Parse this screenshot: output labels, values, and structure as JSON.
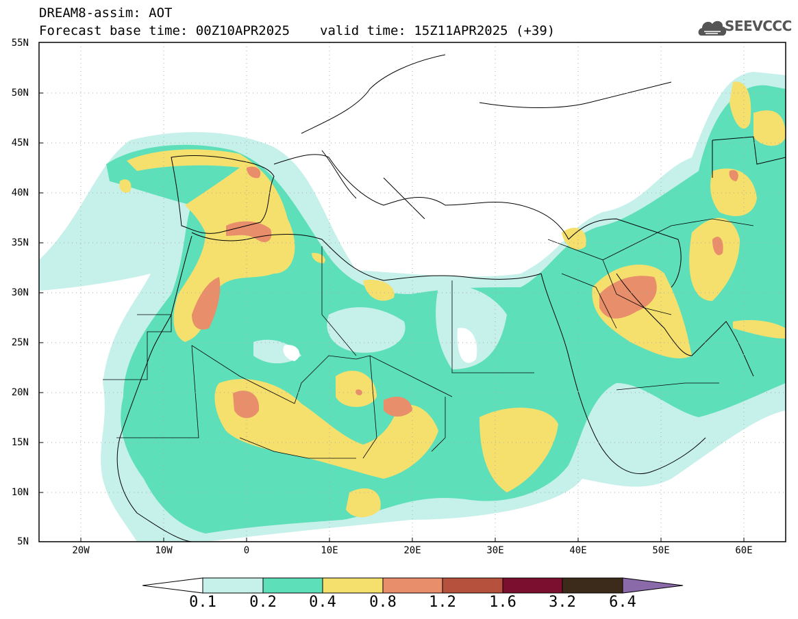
{
  "header": {
    "line1": "DREAM8-assim: AOT",
    "line2_left": "Forecast base time: 00Z10APR2025",
    "line2_right": "valid time: 15Z11APR2025 (+39)",
    "logo_text": "SEEVCCC",
    "logo_icon": "cloud-logo-icon"
  },
  "map": {
    "lat_labels": [
      "55N",
      "50N",
      "45N",
      "40N",
      "35N",
      "30N",
      "25N",
      "20N",
      "15N",
      "10N",
      "5N"
    ],
    "lon_labels": [
      "20W",
      "10W",
      "0",
      "10E",
      "20E",
      "30E",
      "40E",
      "50E",
      "60E"
    ],
    "lat_range": [
      5,
      55
    ],
    "lon_range": [
      -25,
      65
    ],
    "grid": "dotted",
    "variable": "AOT"
  },
  "colorbar": {
    "labels": [
      "0.1",
      "0.2",
      "0.4",
      "0.8",
      "1.2",
      "1.6",
      "3.2",
      "6.4"
    ],
    "colors": [
      "#ffffff",
      "#c6f0ea",
      "#5ddfb9",
      "#f5e06e",
      "#e88e6a",
      "#b6513d",
      "#7b0f2f",
      "#3c2a1a",
      "#8a6aa8"
    ]
  },
  "colors": {
    "c1": "#c6f0ea",
    "c2": "#5ddfb9",
    "c3": "#f5e06e",
    "c4": "#e88e6a",
    "c5": "#b6513d"
  }
}
